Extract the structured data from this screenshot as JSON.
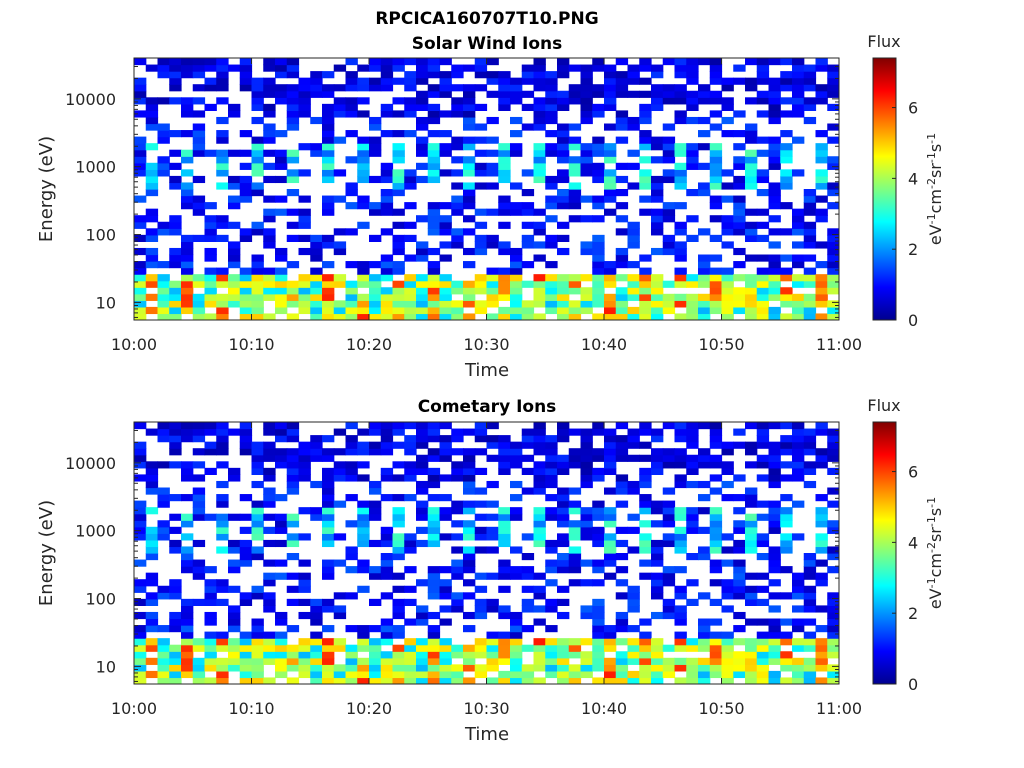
{
  "figure_title": "RPCICA160707T10.PNG",
  "colors": {
    "background": "#ffffff",
    "axis": "#262626",
    "colormap": [
      "#00008f",
      "#0000ff",
      "#00ffff",
      "#ffff00",
      "#ff0000",
      "#800000"
    ]
  },
  "chart_data": [
    {
      "type": "heatmap",
      "title": "Solar Wind Ions",
      "xlabel": "Time",
      "ylabel": "Energy (eV)",
      "x_range": [
        "10:00",
        "11:00"
      ],
      "x_ticks": [
        "10:00",
        "10:10",
        "10:20",
        "10:30",
        "10:40",
        "10:50",
        "11:00"
      ],
      "y_scale": "log",
      "y_range": [
        5.5,
        40000
      ],
      "y_ticks": [
        10,
        100,
        1000,
        10000
      ],
      "y_tick_labels": [
        "10",
        "100",
        "1000",
        "10000"
      ],
      "colorbar": {
        "title": "Flux",
        "label": "eV-1cm-2sr-1s-1",
        "range": [
          0,
          7.4
        ],
        "ticks": [
          0,
          2,
          4,
          6
        ],
        "tick_labels": [
          "0",
          "2",
          "4",
          "6"
        ]
      },
      "grid": false,
      "cell_values": "dense time-energy spectrogram (~60 time bins x ~40 energy bins): flux ~0.5-2 between 30 eV and 40 keV with many empty (white) cells, enhancements ~2-3.5 near 500-2000 eV every ~3 minutes, and ~2.5-6.5 between 6 and 30 eV"
    },
    {
      "type": "heatmap",
      "title": "Cometary Ions",
      "xlabel": "Time",
      "ylabel": "Energy (eV)",
      "x_range": [
        "10:00",
        "11:00"
      ],
      "x_ticks": [
        "10:00",
        "10:10",
        "10:20",
        "10:30",
        "10:40",
        "10:50",
        "11:00"
      ],
      "y_scale": "log",
      "y_range": [
        5.5,
        40000
      ],
      "y_ticks": [
        10,
        100,
        1000,
        10000
      ],
      "y_tick_labels": [
        "10",
        "100",
        "1000",
        "10000"
      ],
      "colorbar": {
        "title": "Flux",
        "label": "eV-1cm-2sr-1s-1",
        "range": [
          0,
          7.4
        ],
        "ticks": [
          0,
          2,
          4,
          6
        ],
        "tick_labels": [
          "0",
          "2",
          "4",
          "6"
        ]
      },
      "grid": false,
      "cell_values": "same spectrogram pattern as the Solar Wind Ions panel"
    }
  ]
}
